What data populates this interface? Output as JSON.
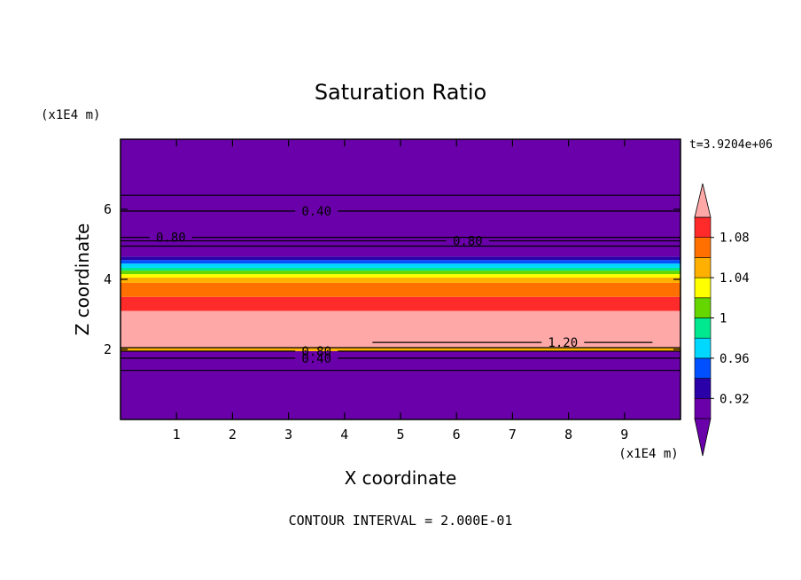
{
  "chart_data": {
    "type": "heatmap",
    "title": "Saturation Ratio",
    "xlabel": "X coordinate",
    "ylabel": "Z coordinate",
    "x_unit": "(x1E4 m)",
    "y_unit": "(x1E4 m)",
    "time_label": "t=3.9204e+06",
    "footer": "CONTOUR INTERVAL = 2.000E-01",
    "xlim": [
      0,
      10
    ],
    "ylim": [
      0,
      8
    ],
    "x_ticks": [
      1,
      2,
      3,
      4,
      5,
      6,
      7,
      8,
      9
    ],
    "y_ticks": [
      2,
      4,
      6
    ],
    "colorbar": {
      "ticks": [
        "1.08",
        "1.04",
        "1",
        "0.96",
        "0.92"
      ],
      "tick_values": [
        1.08,
        1.04,
        1.0,
        0.96,
        0.92
      ],
      "min": 0.9,
      "max": 1.1,
      "levels": [
        {
          "lo": 0.9,
          "hi": 0.92,
          "color": "#6a00aa"
        },
        {
          "lo": 0.92,
          "hi": 0.94,
          "color": "#2a00a8"
        },
        {
          "lo": 0.94,
          "hi": 0.96,
          "color": "#0050ff"
        },
        {
          "lo": 0.96,
          "hi": 0.98,
          "color": "#00d8ff"
        },
        {
          "lo": 0.98,
          "hi": 1.0,
          "color": "#00e890"
        },
        {
          "lo": 1.0,
          "hi": 1.02,
          "color": "#66d600"
        },
        {
          "lo": 1.02,
          "hi": 1.04,
          "color": "#ffff00"
        },
        {
          "lo": 1.04,
          "hi": 1.06,
          "color": "#ffb000"
        },
        {
          "lo": 1.06,
          "hi": 1.08,
          "color": "#ff7000"
        },
        {
          "lo": 1.08,
          "hi": 1.1,
          "color": "#ff2a2a"
        }
      ],
      "under_color": "#6a00aa",
      "over_color": "#ffa8a8"
    },
    "bands": [
      {
        "z0": 0.0,
        "z1": 1.95,
        "color": "#6a00aa"
      },
      {
        "z0": 1.95,
        "z1": 2.05,
        "color": "#ffb000"
      },
      {
        "z0": 2.05,
        "z1": 3.1,
        "color": "#ffa8a8"
      },
      {
        "z0": 3.1,
        "z1": 3.5,
        "color": "#ff2a2a"
      },
      {
        "z0": 3.5,
        "z1": 3.9,
        "color": "#ff7000"
      },
      {
        "z0": 3.9,
        "z1": 4.05,
        "color": "#ffb000"
      },
      {
        "z0": 4.05,
        "z1": 4.15,
        "color": "#ffff00"
      },
      {
        "z0": 4.15,
        "z1": 4.25,
        "color": "#66d600"
      },
      {
        "z0": 4.25,
        "z1": 4.33,
        "color": "#00e890"
      },
      {
        "z0": 4.33,
        "z1": 4.45,
        "color": "#00d8ff"
      },
      {
        "z0": 4.45,
        "z1": 4.55,
        "color": "#0050ff"
      },
      {
        "z0": 4.55,
        "z1": 4.65,
        "color": "#2a00a8"
      },
      {
        "z0": 4.65,
        "z1": 8.0,
        "color": "#6a00aa"
      }
    ],
    "contours": [
      {
        "z": 6.4,
        "label": ""
      },
      {
        "z": 5.95,
        "label": "0.40",
        "label_x": 3.5
      },
      {
        "z": 5.2,
        "label": "0.80",
        "label_x": 0.9
      },
      {
        "z": 5.1,
        "label": "0.80",
        "label_x": 6.2
      },
      {
        "z": 4.95,
        "label": ""
      },
      {
        "z": 2.05,
        "label": ""
      },
      {
        "z": 1.95,
        "label": "0.80",
        "label_x": 3.5
      },
      {
        "z": 1.75,
        "label": "0.40",
        "label_x": 3.5
      },
      {
        "z": 1.4,
        "label": ""
      },
      {
        "z": 2.2,
        "label": "1.20",
        "label_x": 7.9,
        "x0": 4.5,
        "x1": 9.5
      }
    ]
  }
}
